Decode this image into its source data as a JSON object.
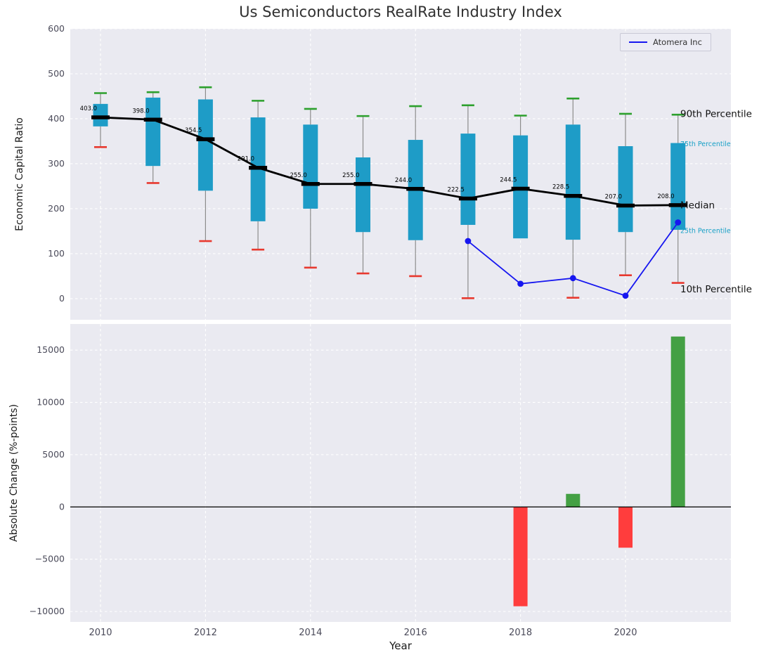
{
  "colors": {
    "box": "#1e9cc7",
    "cap_high": "#2ca02c",
    "cap_low": "#e8392f",
    "whisker": "#8c8c8c",
    "median": "#000000",
    "atomera": "#1616f0",
    "bar_pos": "#44a044",
    "bar_neg": "#ff3d3d",
    "panel_bg": "#eaeaf1",
    "grid": "#ffffff",
    "tick": "#4b4b5a",
    "annotation_cyan": "#18a0c6",
    "annotation_black": "#111111"
  },
  "chart_data": [
    {
      "type": "boxplot",
      "title": "Us Semiconductors RealRate Industry Index",
      "ylabel": "Economic Capital Ratio",
      "ylim": [
        -47,
        600
      ],
      "yticks": [
        0,
        100,
        200,
        300,
        400,
        500,
        600
      ],
      "xticks": [
        2010,
        2012,
        2014,
        2016,
        2018,
        2020
      ],
      "boxes": [
        {
          "year": 2010,
          "low": 337,
          "q1": 383,
          "median": 403.0,
          "q3": 433,
          "high": 457
        },
        {
          "year": 2011,
          "low": 257,
          "q1": 295,
          "median": 398.0,
          "q3": 447,
          "high": 459
        },
        {
          "year": 2012,
          "low": 128,
          "q1": 240,
          "median": 354.5,
          "q3": 443,
          "high": 470
        },
        {
          "year": 2013,
          "low": 109,
          "q1": 172,
          "median": 291.0,
          "q3": 403,
          "high": 440
        },
        {
          "year": 2014,
          "low": 69,
          "q1": 200,
          "median": 255.0,
          "q3": 387,
          "high": 422
        },
        {
          "year": 2015,
          "low": 56,
          "q1": 148,
          "median": 255.0,
          "q3": 314,
          "high": 406
        },
        {
          "year": 2016,
          "low": 50,
          "q1": 130,
          "median": 244.0,
          "q3": 353,
          "high": 428
        },
        {
          "year": 2017,
          "low": 1,
          "q1": 164,
          "median": 222.5,
          "q3": 367,
          "high": 430
        },
        {
          "year": 2018,
          "low": 133,
          "q1": 134,
          "median": 244.5,
          "q3": 363,
          "high": 407
        },
        {
          "year": 2019,
          "low": 2,
          "q1": 131,
          "median": 228.5,
          "q3": 387,
          "high": 445
        },
        {
          "year": 2020,
          "low": 52,
          "q1": 148,
          "median": 207.0,
          "q3": 339,
          "high": 411
        },
        {
          "year": 2021,
          "low": 35,
          "q1": 153,
          "median": 208.0,
          "q3": 346,
          "high": 409
        }
      ],
      "median_labels": [
        "403.0",
        "398.0",
        "354.5",
        "291.0",
        "255.0",
        "255.0",
        "244.0",
        "222.5",
        "244.5",
        "228.5",
        "207.0",
        "208.0"
      ],
      "series": [
        {
          "name": "Atomera Inc",
          "x": [
            2017,
            2018,
            2019,
            2020,
            2021
          ],
          "y": [
            128,
            33,
            45.5,
            6.5,
            169.5
          ]
        }
      ],
      "annotations": [
        {
          "text": "90th Percentile",
          "value": 410,
          "style": "black-large"
        },
        {
          "text": "75th Percentile",
          "value": 345,
          "style": "cyan-small"
        },
        {
          "text": "Median",
          "value": 207,
          "style": "black-large"
        },
        {
          "text": "25th Percentile",
          "value": 152,
          "style": "cyan-small"
        },
        {
          "text": "10th Percentile",
          "value": 20,
          "style": "black-large"
        }
      ]
    },
    {
      "type": "bar",
      "ylabel": "Absolute Change (%-points)",
      "xlabel": "Year",
      "ylim": [
        -11000,
        17500
      ],
      "yticks": [
        -10000,
        -5000,
        0,
        5000,
        10000,
        15000
      ],
      "categories": [
        2018,
        2019,
        2020,
        2021
      ],
      "values": [
        -9500,
        1250,
        -3900,
        16300
      ]
    }
  ]
}
